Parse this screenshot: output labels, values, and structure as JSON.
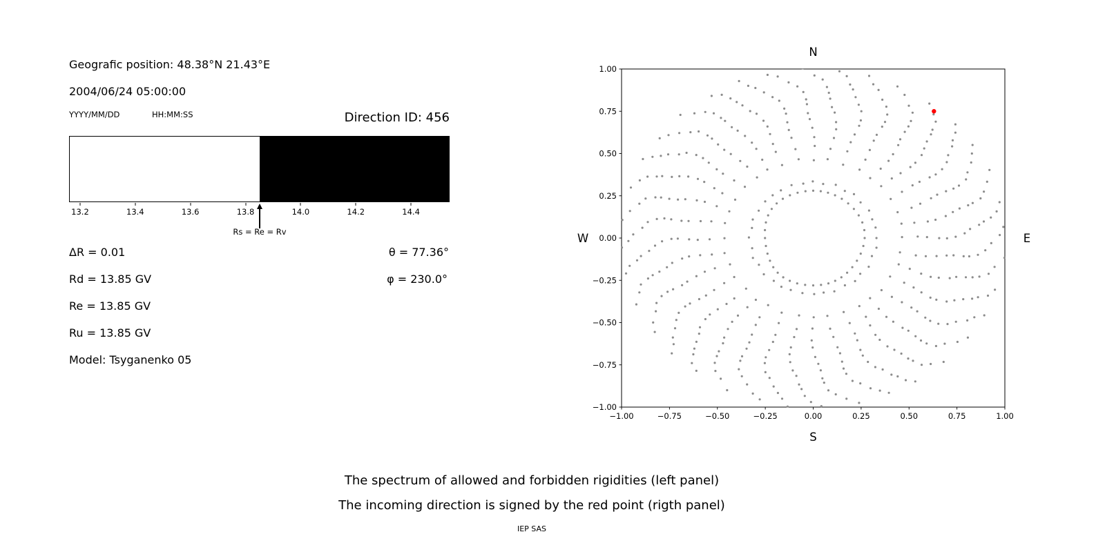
{
  "info_panel": {
    "geo_position": "Geografic position: 48.38°N 21.43°E",
    "datetime": "2004/06/24 05:00:00",
    "date_format_label": "YYYY/MM/DD",
    "time_format_label": "HH:MM:SS",
    "direction_id": "Direction ID: 456",
    "delta_r": "ΔR = 0.01",
    "theta": "θ = 77.36°",
    "rd": "Rd = 13.85 GV",
    "phi": "φ = 230.0°",
    "re": "Re = 13.85 GV",
    "ru": "Ru = 13.85 GV",
    "model": "Model: Tsyganenko 05"
  },
  "caption": {
    "line1": "The spectrum of allowed and forbidden rigidities (left panel)",
    "line2": "The incoming direction is signed by the red point (rigth panel)",
    "credit": "IEP SAS"
  },
  "chart_data": [
    {
      "id": "rigidity-spectrum",
      "type": "area",
      "xlim": [
        13.16,
        14.54
      ],
      "xticks": [
        13.2,
        13.4,
        13.6,
        13.8,
        14.0,
        14.2,
        14.4
      ],
      "boundary_rigidity": 13.85,
      "allowed_region": {
        "from": 13.16,
        "to": 13.85,
        "color": "#ffffff"
      },
      "forbidden_region": {
        "from": 13.85,
        "to": 14.54,
        "color": "#000000"
      },
      "marker": {
        "x": 13.85,
        "label": "Rs = Re = Rv"
      }
    },
    {
      "id": "incoming-direction-map",
      "type": "scatter",
      "xlim": [
        -1.0,
        1.0
      ],
      "ylim": [
        -1.0,
        1.0
      ],
      "xticks": [
        -1.0,
        -0.75,
        -0.5,
        -0.25,
        0.0,
        0.25,
        0.5,
        0.75,
        1.0
      ],
      "yticks": [
        -1.0,
        -0.75,
        -0.5,
        -0.25,
        0.0,
        0.25,
        0.5,
        0.75,
        1.0
      ],
      "compass": {
        "top": "N",
        "bottom": "S",
        "left": "W",
        "right": "E"
      },
      "grid_dots": {
        "color": "#8c8c8c",
        "spoke_count": 36,
        "angle_step_deg": 10,
        "r_start": 0.33,
        "r_end": 1.0,
        "dots_per_spoke": 14,
        "curvature_deg": 13,
        "inner_ring": {
          "rx": 0.26,
          "ry": 0.29,
          "count": 40
        }
      },
      "red_point": {
        "x": 0.63,
        "y": 0.75,
        "color": "#ff0000"
      }
    }
  ]
}
